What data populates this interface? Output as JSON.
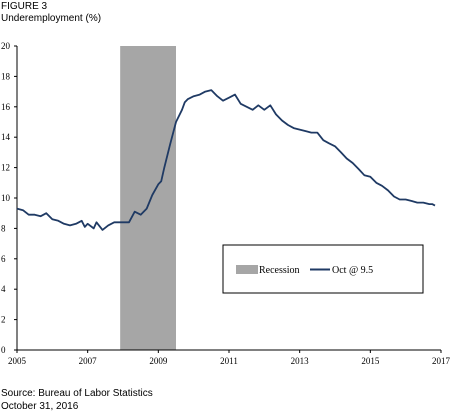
{
  "figure_label": "FIGURE 3",
  "source": "Source: Bureau of Labor Statistics",
  "date_note": "October 31, 2016",
  "colors": {
    "line": "#1f3a64",
    "recession": "#a6a6a6",
    "axis": "#000000"
  },
  "chart_data": {
    "type": "line",
    "title": "Underemployment (%)",
    "xlabel": "",
    "ylabel": "",
    "xlim": [
      2005.0,
      2017.0
    ],
    "ylim": [
      0,
      20
    ],
    "yticks": [
      0,
      2,
      4,
      6,
      8,
      10,
      12,
      14,
      16,
      18,
      20
    ],
    "xticks": [
      2005,
      2007,
      2009,
      2011,
      2013,
      2015,
      2017
    ],
    "xtick_labels": [
      "2005",
      "2007",
      "2009",
      "2011",
      "2013",
      "2015",
      "2017"
    ],
    "ytick_labels": [
      "0",
      "2",
      "4",
      "6",
      "8",
      "10",
      "12",
      "14",
      "16",
      "18",
      "20"
    ],
    "grid": false,
    "legend_position": "bottom-right",
    "recession": {
      "name": "Recession",
      "start": 2007.92,
      "end": 2009.5
    },
    "series": [
      {
        "name": "Oct @ 9.5",
        "points": [
          [
            2005.0,
            9.3
          ],
          [
            2005.17,
            9.2
          ],
          [
            2005.33,
            8.9
          ],
          [
            2005.5,
            8.9
          ],
          [
            2005.67,
            8.8
          ],
          [
            2005.83,
            9.0
          ],
          [
            2006.0,
            8.6
          ],
          [
            2006.17,
            8.5
          ],
          [
            2006.33,
            8.3
          ],
          [
            2006.5,
            8.2
          ],
          [
            2006.67,
            8.3
          ],
          [
            2006.83,
            8.5
          ],
          [
            2006.92,
            8.1
          ],
          [
            2007.0,
            8.3
          ],
          [
            2007.17,
            8.0
          ],
          [
            2007.25,
            8.4
          ],
          [
            2007.42,
            7.9
          ],
          [
            2007.58,
            8.2
          ],
          [
            2007.75,
            8.4
          ],
          [
            2007.92,
            8.4
          ],
          [
            2008.0,
            8.4
          ],
          [
            2008.17,
            8.4
          ],
          [
            2008.33,
            9.1
          ],
          [
            2008.5,
            8.9
          ],
          [
            2008.67,
            9.3
          ],
          [
            2008.83,
            10.2
          ],
          [
            2009.0,
            10.9
          ],
          [
            2009.08,
            11.1
          ],
          [
            2009.17,
            12.0
          ],
          [
            2009.33,
            13.5
          ],
          [
            2009.5,
            15.0
          ],
          [
            2009.67,
            15.8
          ],
          [
            2009.75,
            16.3
          ],
          [
            2009.83,
            16.5
          ],
          [
            2010.0,
            16.7
          ],
          [
            2010.17,
            16.8
          ],
          [
            2010.33,
            17.0
          ],
          [
            2010.5,
            17.1
          ],
          [
            2010.67,
            16.7
          ],
          [
            2010.83,
            16.4
          ],
          [
            2011.0,
            16.6
          ],
          [
            2011.17,
            16.8
          ],
          [
            2011.33,
            16.2
          ],
          [
            2011.5,
            16.0
          ],
          [
            2011.67,
            15.8
          ],
          [
            2011.83,
            16.1
          ],
          [
            2012.0,
            15.8
          ],
          [
            2012.17,
            16.1
          ],
          [
            2012.33,
            15.5
          ],
          [
            2012.5,
            15.1
          ],
          [
            2012.67,
            14.8
          ],
          [
            2012.83,
            14.6
          ],
          [
            2013.0,
            14.5
          ],
          [
            2013.17,
            14.4
          ],
          [
            2013.33,
            14.3
          ],
          [
            2013.5,
            14.3
          ],
          [
            2013.67,
            13.8
          ],
          [
            2013.83,
            13.6
          ],
          [
            2014.0,
            13.4
          ],
          [
            2014.17,
            13.0
          ],
          [
            2014.33,
            12.6
          ],
          [
            2014.5,
            12.3
          ],
          [
            2014.67,
            11.9
          ],
          [
            2014.83,
            11.5
          ],
          [
            2015.0,
            11.4
          ],
          [
            2015.17,
            11.0
          ],
          [
            2015.33,
            10.8
          ],
          [
            2015.5,
            10.5
          ],
          [
            2015.67,
            10.1
          ],
          [
            2015.83,
            9.9
          ],
          [
            2016.0,
            9.9
          ],
          [
            2016.17,
            9.8
          ],
          [
            2016.33,
            9.7
          ],
          [
            2016.5,
            9.7
          ],
          [
            2016.67,
            9.6
          ],
          [
            2016.75,
            9.6
          ],
          [
            2016.83,
            9.5
          ]
        ]
      }
    ]
  }
}
